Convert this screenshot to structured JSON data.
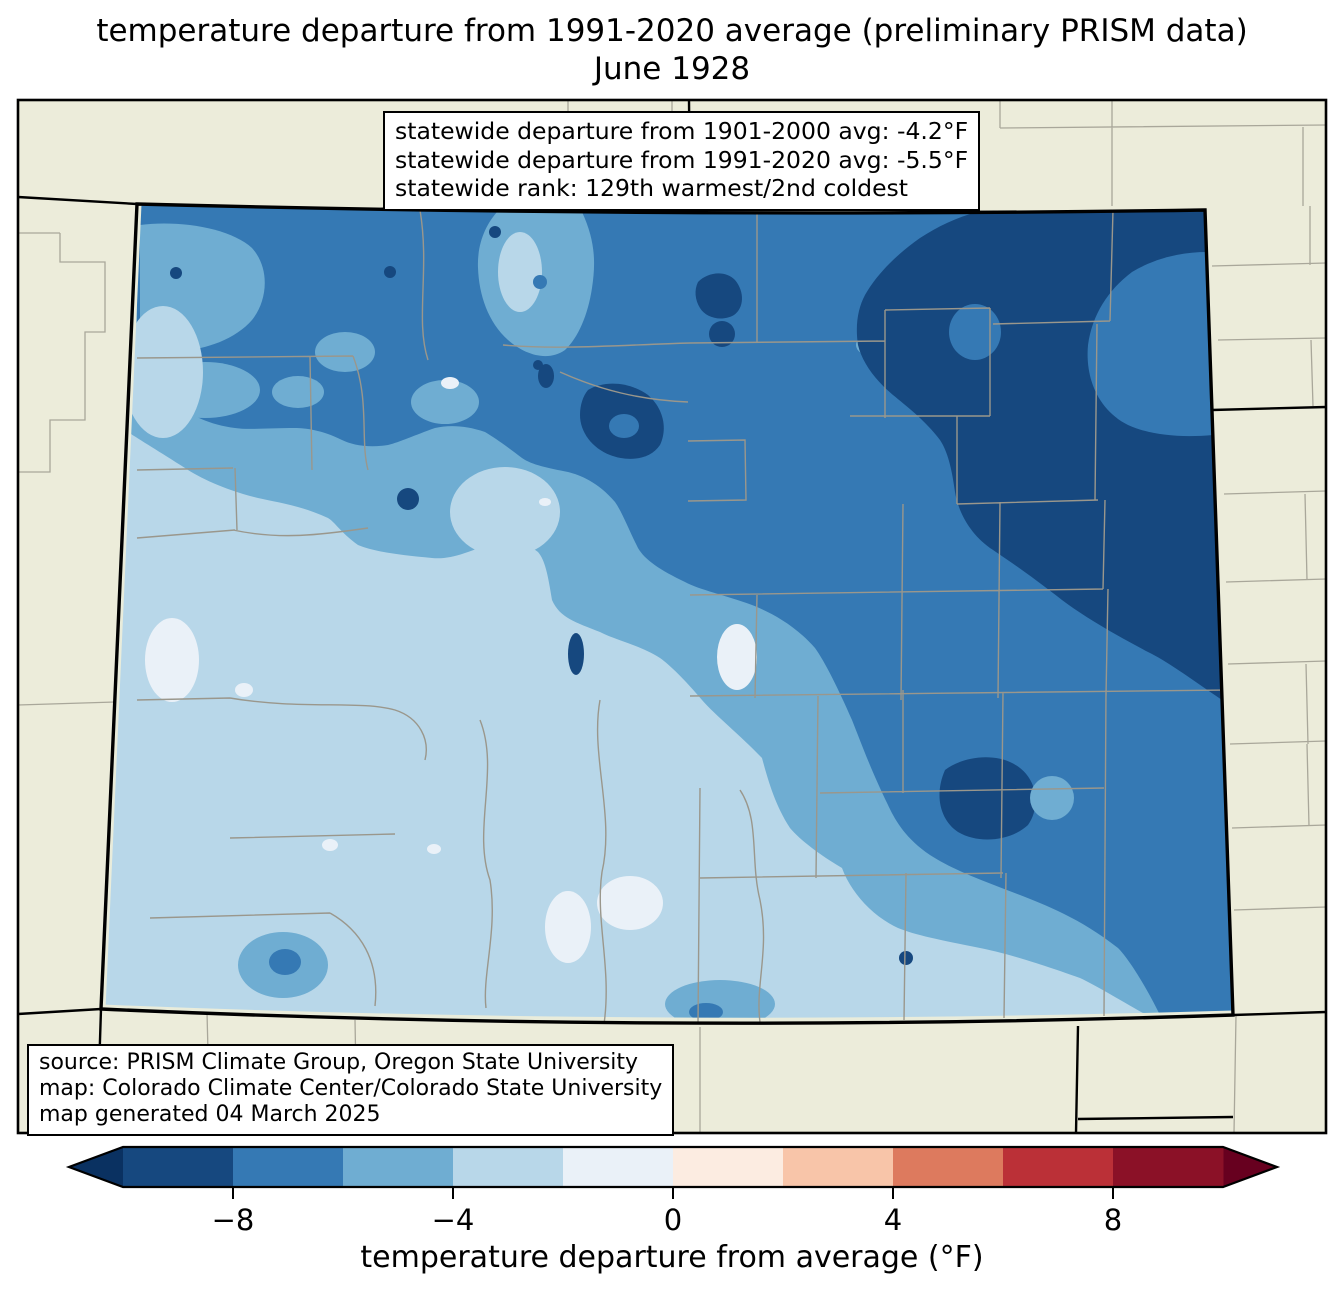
{
  "figure": {
    "title_line1": "temperature departure from 1991-2020 average (preliminary PRISM data)",
    "title_line2": "June 1928"
  },
  "stats_box": {
    "line1": "statewide departure from 1901-2000 avg: -4.2°F",
    "line2": "statewide departure from 1991-2020 avg: -5.5°F",
    "line3": "statewide rank: 129th warmest/2nd coldest"
  },
  "source_box": {
    "line1": "source: PRISM Climate Group, Oregon State University",
    "line2": "map: Colorado Climate Center/Colorado State University",
    "line3": "map generated 04 March 2025"
  },
  "colorbar": {
    "label": "temperature departure from average (°F)",
    "tick_labels": [
      "−8",
      "−4",
      "0",
      "4",
      "8"
    ],
    "segment_colors": [
      "#16487f",
      "#3579b4",
      "#6fadd2",
      "#b8d7e9",
      "#eaf1f8",
      "#fcece1",
      "#f8c5a9",
      "#dd7a5e",
      "#bb3037",
      "#8b1127"
    ],
    "under_arrow_color": "#0a3161",
    "over_arrow_color": "#67001f"
  },
  "colors": {
    "map_background": "#ececda",
    "county_line": "#9a978c",
    "outer_county_line": "#a9a79a",
    "state_border": "#000000",
    "edge_strip": "#e9ecdb",
    "seg1": "#16487f",
    "seg2": "#3579b4",
    "seg3": "#6fadd2",
    "seg4": "#b8d7e9",
    "seg5": "#eaf1f8"
  },
  "chart_data": {
    "type": "choropleth_map",
    "region": "Colorado",
    "variable": "temperature departure from average (°F)",
    "period": "June 1928",
    "baseline": "1991-2020",
    "data_source": "preliminary PRISM data",
    "scale_ticks": [
      -8,
      -4,
      0,
      4,
      8
    ],
    "scale_range": [
      -10,
      10
    ],
    "bin_size_f": 2,
    "statewide_departure_1901_2000_f": -4.2,
    "statewide_departure_1991_2020_f": -5.5,
    "statewide_rank": "129th warmest/2nd coldest",
    "value_colors": {
      "-10 to -8": "#16487f",
      "-8 to -6": "#3579b4",
      "-6 to -4": "#6fadd2",
      "-4 to -2": "#b8d7e9",
      "-2 to 0": "#eaf1f8",
      "0 to 2": "#fcece1",
      "2 to 4": "#f8c5a9",
      "4 to 6": "#dd7a5e",
      "6 to 8": "#bb3037",
      "8 to 10": "#8b1127"
    },
    "map_summary": "Entire state below average; coldest (-10 to -8°F) in northeast plains, -8 to -6°F across north and east, -6 to -2°F in central and southwest areas"
  }
}
